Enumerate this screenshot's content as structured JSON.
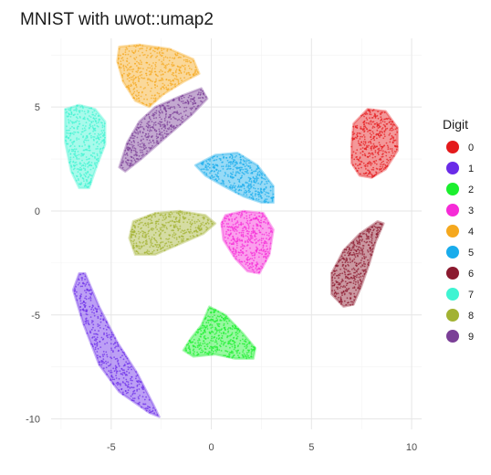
{
  "chart_data": {
    "type": "scatter",
    "title": "MNIST with uwot::umap2",
    "xlabel": "",
    "ylabel": "",
    "xlim": [
      -8,
      10.5
    ],
    "ylim": [
      -10.5,
      8.3
    ],
    "x_ticks": [
      -5,
      0,
      5,
      10
    ],
    "y_ticks": [
      -10,
      -5,
      0,
      5
    ],
    "x_tick_labels": [
      "-5",
      "0",
      "5",
      "10"
    ],
    "y_tick_labels": [
      "-10",
      "-5",
      "0",
      "5"
    ],
    "grid": true,
    "legend": {
      "title": "Digit",
      "position": "right"
    },
    "series": [
      {
        "name": "0",
        "color": "#E41A1C",
        "outline": [
          [
            7.0,
            3.2
          ],
          [
            7.1,
            4.2
          ],
          [
            7.8,
            4.9
          ],
          [
            8.7,
            4.8
          ],
          [
            9.3,
            4.0
          ],
          [
            9.3,
            2.9
          ],
          [
            8.7,
            2.0
          ],
          [
            8.0,
            1.6
          ],
          [
            7.4,
            1.7
          ],
          [
            7.0,
            2.3
          ]
        ]
      },
      {
        "name": "1",
        "color": "#6A2BE8",
        "outline": [
          [
            -6.6,
            -3.0
          ],
          [
            -6.3,
            -3.0
          ],
          [
            -5.6,
            -4.6
          ],
          [
            -4.7,
            -6.3
          ],
          [
            -3.7,
            -7.8
          ],
          [
            -2.9,
            -9.3
          ],
          [
            -2.6,
            -9.9
          ],
          [
            -3.1,
            -9.7
          ],
          [
            -4.6,
            -8.7
          ],
          [
            -5.6,
            -7.4
          ],
          [
            -6.4,
            -5.4
          ],
          [
            -6.9,
            -3.8
          ]
        ]
      },
      {
        "name": "2",
        "color": "#1BEF2E",
        "outline": [
          [
            -0.1,
            -4.6
          ],
          [
            0.7,
            -5.0
          ],
          [
            1.6,
            -5.9
          ],
          [
            2.2,
            -6.6
          ],
          [
            2.1,
            -7.1
          ],
          [
            1.2,
            -7.1
          ],
          [
            0.2,
            -6.9
          ],
          [
            -0.9,
            -7.0
          ],
          [
            -1.4,
            -6.7
          ],
          [
            -1.0,
            -6.1
          ],
          [
            -0.5,
            -5.5
          ]
        ]
      },
      {
        "name": "3",
        "color": "#F62BD7",
        "outline": [
          [
            0.7,
            -0.2
          ],
          [
            1.6,
            0.0
          ],
          [
            2.6,
            -0.1
          ],
          [
            3.1,
            -0.9
          ],
          [
            2.9,
            -2.1
          ],
          [
            2.4,
            -3.0
          ],
          [
            1.8,
            -2.9
          ],
          [
            1.2,
            -2.3
          ],
          [
            0.6,
            -1.4
          ],
          [
            0.5,
            -0.6
          ]
        ]
      },
      {
        "name": "4",
        "color": "#F5A81E",
        "outline": [
          [
            -4.6,
            7.9
          ],
          [
            -3.6,
            8.0
          ],
          [
            -2.1,
            7.8
          ],
          [
            -0.9,
            7.3
          ],
          [
            -0.6,
            6.6
          ],
          [
            -1.4,
            6.2
          ],
          [
            -2.4,
            5.6
          ],
          [
            -3.1,
            5.0
          ],
          [
            -3.8,
            5.3
          ],
          [
            -4.4,
            6.2
          ],
          [
            -4.7,
            7.2
          ]
        ]
      },
      {
        "name": "5",
        "color": "#19ACEC",
        "outline": [
          [
            -0.8,
            2.2
          ],
          [
            0.2,
            2.7
          ],
          [
            1.3,
            2.8
          ],
          [
            2.3,
            2.2
          ],
          [
            3.1,
            1.2
          ],
          [
            3.1,
            0.4
          ],
          [
            2.5,
            0.4
          ],
          [
            1.6,
            0.7
          ],
          [
            0.6,
            1.2
          ],
          [
            -0.3,
            1.7
          ]
        ]
      },
      {
        "name": "6",
        "color": "#8B1A2F",
        "outline": [
          [
            8.3,
            -0.5
          ],
          [
            8.6,
            -0.6
          ],
          [
            8.2,
            -1.5
          ],
          [
            7.9,
            -2.5
          ],
          [
            7.5,
            -3.6
          ],
          [
            7.1,
            -4.5
          ],
          [
            6.6,
            -4.6
          ],
          [
            6.0,
            -4.0
          ],
          [
            6.0,
            -3.0
          ],
          [
            6.6,
            -1.9
          ],
          [
            7.4,
            -1.1
          ]
        ]
      },
      {
        "name": "7",
        "color": "#3FF4D2",
        "outline": [
          [
            -7.3,
            4.9
          ],
          [
            -6.6,
            5.1
          ],
          [
            -5.8,
            4.9
          ],
          [
            -5.3,
            4.3
          ],
          [
            -5.3,
            3.2
          ],
          [
            -5.7,
            2.2
          ],
          [
            -6.1,
            1.1
          ],
          [
            -6.6,
            1.1
          ],
          [
            -7.0,
            1.9
          ],
          [
            -7.3,
            3.3
          ]
        ]
      },
      {
        "name": "8",
        "color": "#A2B232",
        "outline": [
          [
            -3.9,
            -0.5
          ],
          [
            -2.8,
            -0.1
          ],
          [
            -1.6,
            0.0
          ],
          [
            -0.3,
            -0.2
          ],
          [
            0.2,
            -0.6
          ],
          [
            -0.4,
            -1.1
          ],
          [
            -1.6,
            -1.6
          ],
          [
            -2.8,
            -2.1
          ],
          [
            -3.8,
            -2.1
          ],
          [
            -4.1,
            -1.3
          ]
        ]
      },
      {
        "name": "9",
        "color": "#7B3F97",
        "outline": [
          [
            -4.6,
            2.1
          ],
          [
            -4.2,
            3.3
          ],
          [
            -3.6,
            4.3
          ],
          [
            -2.8,
            5.0
          ],
          [
            -1.6,
            5.5
          ],
          [
            -0.5,
            5.9
          ],
          [
            -0.2,
            5.4
          ],
          [
            -1.0,
            4.6
          ],
          [
            -2.2,
            3.6
          ],
          [
            -3.5,
            2.5
          ],
          [
            -4.3,
            1.9
          ]
        ]
      }
    ]
  }
}
